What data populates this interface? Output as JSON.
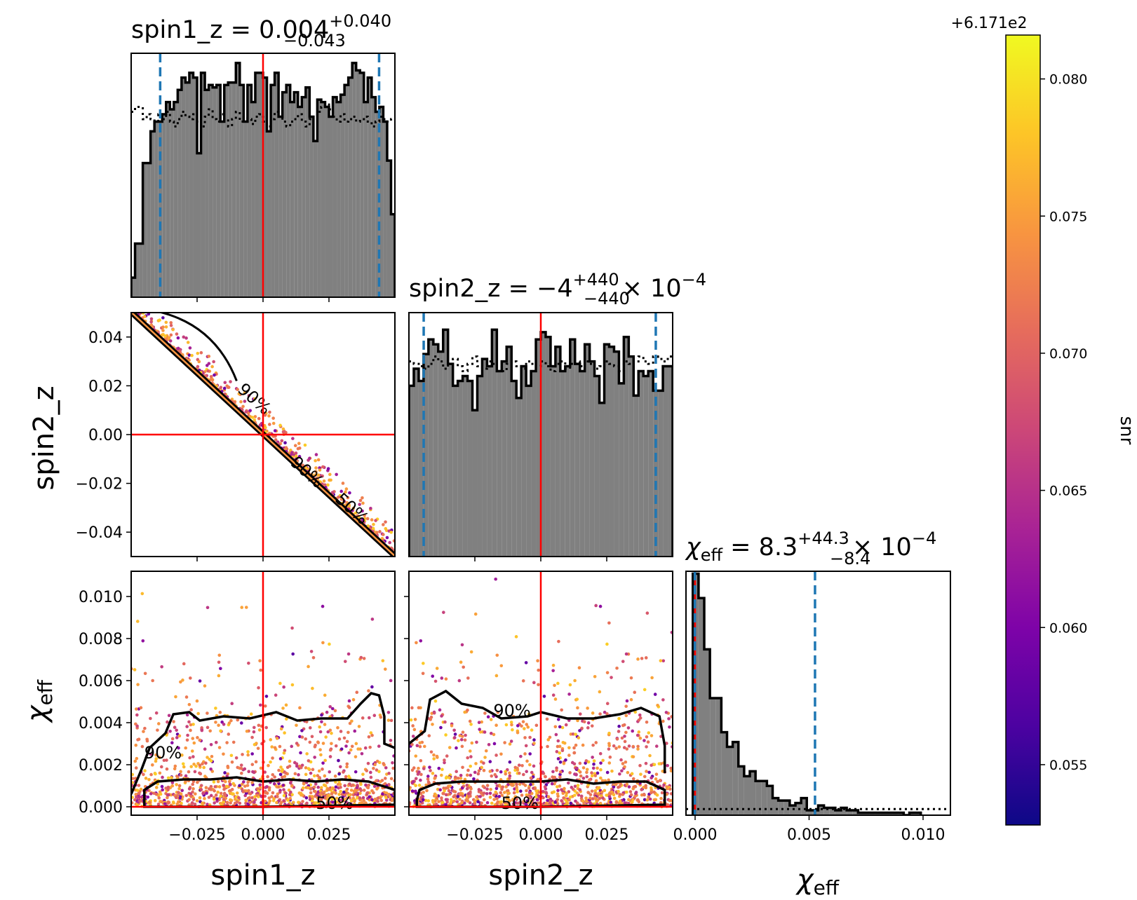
{
  "figure": {
    "colorbar": {
      "label": "snr",
      "offset_label": "+6.171e2",
      "colormap": "plasma",
      "range": [
        0.0528,
        0.0816
      ],
      "ticks": [
        "0.055",
        "0.060",
        "0.065",
        "0.070",
        "0.075",
        "0.080"
      ],
      "tick_values": [
        0.055,
        0.06,
        0.065,
        0.07,
        0.075,
        0.08
      ]
    },
    "colors": {
      "histogram_fill": "#808080",
      "histogram_edge": "#000000",
      "truth_line": "#ff0000",
      "credible_interval_line": "#1f77b4",
      "contour": "#000000"
    }
  },
  "chart_data": [
    {
      "id": "hist-spin1_z",
      "type": "bar",
      "title_base": "spin1_z = 0.004",
      "title_sup": "+0.040",
      "title_sub": "−0.043",
      "title_mult": "",
      "title_exp": "",
      "xlim": [
        -0.05,
        0.05
      ],
      "median": 0.004,
      "interval": [
        -0.039,
        0.044
      ],
      "truth": 0.0,
      "xticks": [
        -0.025,
        0.0,
        0.025
      ],
      "values": [
        0.08,
        0.22,
        0.22,
        0.55,
        0.55,
        0.68,
        0.72,
        0.72,
        0.75,
        0.8,
        0.77,
        0.8,
        0.85,
        0.9,
        0.88,
        0.92,
        0.9,
        0.59,
        0.92,
        0.85,
        0.87,
        0.86,
        0.87,
        0.72,
        0.87,
        0.88,
        0.88,
        0.96,
        0.87,
        0.72,
        0.87,
        0.8,
        0.92,
        0.92,
        0.9,
        0.68,
        0.87,
        0.92,
        0.74,
        0.84,
        0.87,
        0.8,
        0.84,
        0.78,
        0.82,
        0.86,
        0.74,
        0.64,
        0.81,
        0.8,
        0.78,
        0.74,
        0.82,
        0.8,
        0.83,
        0.87,
        0.9,
        0.96,
        0.93,
        0.92,
        0.8,
        0.9,
        0.82,
        0.76,
        0.78,
        0.72,
        0.56,
        0.34
      ],
      "prior": [
        0.76,
        0.78,
        0.78,
        0.73,
        0.75,
        0.73,
        0.72,
        0.75,
        0.73,
        0.76,
        0.72,
        0.7,
        0.73,
        0.76,
        0.74,
        0.73,
        0.75,
        0.72,
        0.7,
        0.74,
        0.77,
        0.73,
        0.72,
        0.75,
        0.73,
        0.7,
        0.73,
        0.76,
        0.72,
        0.74,
        0.73,
        0.71,
        0.74,
        0.75,
        0.72,
        0.7,
        0.73,
        0.76,
        0.74,
        0.72,
        0.7,
        0.72,
        0.73,
        0.75,
        0.72,
        0.7,
        0.73,
        0.74,
        0.76,
        0.78,
        0.79,
        0.77,
        0.74,
        0.72,
        0.75,
        0.72,
        0.73,
        0.74,
        0.72,
        0.73,
        0.74,
        0.72,
        0.7,
        0.72,
        0.74,
        0.73,
        0.72,
        0.73
      ]
    },
    {
      "id": "hist-spin2_z",
      "type": "bar",
      "title_base": "spin2_z = −4",
      "title_sup": "+440",
      "title_sub": "−440",
      "title_mult": "× 10",
      "title_exp": "−4",
      "xlim": [
        -0.05,
        0.05
      ],
      "median": -0.0004,
      "interval": [
        -0.0444,
        0.0436
      ],
      "truth": 0.0,
      "xticks": [
        -0.025,
        0.0,
        0.025
      ],
      "values": [
        0.7,
        0.77,
        0.72,
        0.83,
        0.89,
        0.87,
        0.84,
        0.93,
        0.79,
        0.7,
        0.72,
        0.74,
        0.72,
        0.6,
        0.74,
        0.81,
        0.78,
        0.93,
        0.76,
        0.8,
        0.86,
        0.72,
        0.65,
        0.78,
        0.7,
        0.76,
        0.89,
        0.92,
        0.9,
        0.78,
        0.86,
        0.76,
        0.78,
        0.89,
        0.79,
        0.76,
        0.87,
        0.8,
        0.74,
        0.63,
        0.87,
        0.86,
        0.84,
        0.71,
        0.9,
        0.82,
        0.66,
        0.76,
        0.74,
        0.76,
        0.68,
        0.68,
        0.78,
        0.78
      ],
      "prior": [
        0.8,
        0.79,
        0.78,
        0.77,
        0.79,
        0.82,
        0.8,
        0.77,
        0.79,
        0.81,
        0.78,
        0.76,
        0.79,
        0.82,
        0.78,
        0.77,
        0.8,
        0.79,
        0.78,
        0.76,
        0.79,
        0.8,
        0.78,
        0.77,
        0.8,
        0.79,
        0.78,
        0.8,
        0.78,
        0.76,
        0.79,
        0.8,
        0.77,
        0.79,
        0.8,
        0.78,
        0.8,
        0.79,
        0.77,
        0.78,
        0.8,
        0.79,
        0.78,
        0.76,
        0.8,
        0.79,
        0.8,
        0.82,
        0.8,
        0.79,
        0.82,
        0.81,
        0.8,
        0.82
      ]
    },
    {
      "id": "hist-chi_eff",
      "type": "bar",
      "title_base": "χ",
      "title_base_sub": "eff",
      "title_value": " = 8.3",
      "title_sup": "+44.3",
      "title_sub": "−8.4",
      "title_mult": "× 10",
      "title_exp": "−4",
      "xlim": [
        -0.0004,
        0.0112
      ],
      "median": 0.00083,
      "interval": [
        -1e-05,
        0.00526
      ],
      "truth": 0.0,
      "xticks": [
        0.0,
        0.005,
        0.01
      ],
      "bin_width": 0.00025,
      "values": [
        0.99,
        0.89,
        0.68,
        0.48,
        0.48,
        0.34,
        0.28,
        0.3,
        0.2,
        0.16,
        0.18,
        0.14,
        0.14,
        0.12,
        0.07,
        0.06,
        0.06,
        0.04,
        0.05,
        0.07,
        0.02,
        0.02,
        0.04,
        0.03,
        0.03,
        0.02,
        0.03,
        0.02,
        0.02,
        0.01,
        0.01,
        0.01,
        0.01,
        0.01,
        0.01,
        0.01,
        0.01,
        0.0,
        0.01,
        0.01
      ],
      "prior_level": 0.025
    },
    {
      "id": "scatter-spin1_z-spin2_z",
      "type": "scatter",
      "xlabel": "",
      "ylabel": "spin2_z",
      "xlim": [
        -0.05,
        0.05
      ],
      "ylim": [
        -0.05,
        0.05
      ],
      "yticks": [
        "0.04",
        "0.02",
        "0.00",
        "−0.02",
        "−0.04"
      ],
      "ytick_values": [
        0.04,
        0.02,
        0.0,
        -0.02,
        -0.04
      ],
      "xticks": [
        -0.025,
        0.0,
        0.025
      ],
      "truth": [
        0.0,
        0.0
      ],
      "contour_labels": [
        "90%",
        "90%",
        "50%"
      ],
      "contour_label_values": [
        [
          -0.01,
          0.018
        ],
        [
          0.01,
          -0.012
        ],
        [
          0.027,
          -0.027
        ]
      ],
      "samples": {
        "model": "anticorrelated",
        "relation": "spin2_z ≈ −spin1_z",
        "count": 900
      }
    },
    {
      "id": "scatter-spin1_z-chi_eff",
      "type": "scatter",
      "xlabel": "spin1_z",
      "ylabel": "χ",
      "ylabel_sub": "eff",
      "xlim": [
        -0.05,
        0.05
      ],
      "ylim": [
        -0.0004,
        0.0112
      ],
      "xticks": [
        "−0.025",
        "0.000",
        "0.025"
      ],
      "xtick_values": [
        -0.025,
        0.0,
        0.025
      ],
      "yticks": [
        "0.010",
        "0.008",
        "0.006",
        "0.004",
        "0.002",
        "0.000"
      ],
      "ytick_values": [
        0.01,
        0.008,
        0.006,
        0.004,
        0.002,
        0.0
      ],
      "truth": [
        0.0,
        0.0
      ],
      "contour_labels": [
        "90%",
        "50%"
      ],
      "contour_label_values": [
        [
          -0.045,
          0.0023
        ],
        [
          0.02,
          -0.0001
        ]
      ],
      "samples": {
        "count": 1200
      }
    },
    {
      "id": "scatter-spin2_z-chi_eff",
      "type": "scatter",
      "xlabel": "spin2_z",
      "ylabel": "",
      "xlim": [
        -0.05,
        0.05
      ],
      "ylim": [
        -0.0004,
        0.0112
      ],
      "xticks": [
        "−0.025",
        "0.000",
        "0.025"
      ],
      "xtick_values": [
        -0.025,
        0.0,
        0.025
      ],
      "truth": [
        0.0,
        0.0
      ],
      "contour_labels": [
        "90%",
        "50%"
      ],
      "contour_label_values": [
        [
          -0.018,
          0.0043
        ],
        [
          -0.015,
          -0.0001
        ]
      ],
      "samples": {
        "count": 1200
      }
    },
    {
      "id": "hist-chi_eff-axis",
      "type": "bar",
      "xlabel": "χ",
      "xlabel_sub": "eff",
      "xticks": [
        "0.000",
        "0.005",
        "0.010"
      ],
      "xtick_values": [
        0.0,
        0.005,
        0.01
      ]
    }
  ]
}
